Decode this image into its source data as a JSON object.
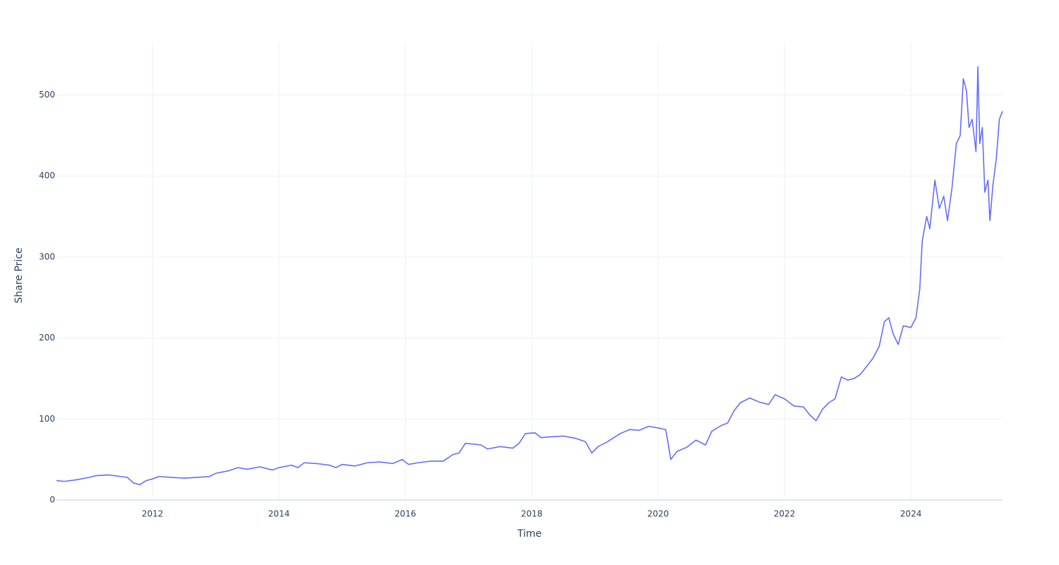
{
  "chart_data": {
    "type": "line",
    "x_label": "Time",
    "y_label": "Share Price",
    "color": "#636efa",
    "grid": true,
    "xlim": [
      2010.48,
      2025.45
    ],
    "ylim": [
      0,
      565
    ],
    "xticks": [
      2012,
      2014,
      2016,
      2018,
      2020,
      2022,
      2024
    ],
    "yticks": [
      0,
      100,
      200,
      300,
      400,
      500
    ],
    "x": [
      2010.48,
      2010.6,
      2010.8,
      2011.0,
      2011.1,
      2011.3,
      2011.5,
      2011.6,
      2011.7,
      2011.8,
      2011.9,
      2012.0,
      2012.1,
      2012.3,
      2012.5,
      2012.7,
      2012.9,
      2013.0,
      2013.2,
      2013.35,
      2013.5,
      2013.7,
      2013.9,
      2014.0,
      2014.2,
      2014.3,
      2014.4,
      2014.6,
      2014.8,
      2014.9,
      2015.0,
      2015.2,
      2015.4,
      2015.6,
      2015.8,
      2015.95,
      2016.05,
      2016.2,
      2016.4,
      2016.6,
      2016.75,
      2016.85,
      2016.95,
      2017.2,
      2017.3,
      2017.5,
      2017.7,
      2017.8,
      2017.9,
      2018.05,
      2018.15,
      2018.3,
      2018.5,
      2018.7,
      2018.85,
      2018.95,
      2019.05,
      2019.2,
      2019.4,
      2019.55,
      2019.7,
      2019.85,
      2020.0,
      2020.12,
      2020.15,
      2020.2,
      2020.3,
      2020.45,
      2020.6,
      2020.75,
      2020.85,
      2021.0,
      2021.1,
      2021.2,
      2021.3,
      2021.45,
      2021.6,
      2021.75,
      2021.85,
      2022.0,
      2022.15,
      2022.3,
      2022.4,
      2022.5,
      2022.6,
      2022.7,
      2022.8,
      2022.9,
      2023.0,
      2023.1,
      2023.2,
      2023.3,
      2023.4,
      2023.5,
      2023.58,
      2023.65,
      2023.72,
      2023.8,
      2023.88,
      2024.0,
      2024.08,
      2024.14,
      2024.18,
      2024.25,
      2024.3,
      2024.38,
      2024.45,
      2024.52,
      2024.58,
      2024.65,
      2024.72,
      2024.78,
      2024.83,
      2024.88,
      2024.92,
      2024.97,
      2025.03,
      2025.06,
      2025.09,
      2025.13,
      2025.17,
      2025.22,
      2025.25,
      2025.3,
      2025.35,
      2025.4,
      2025.45
    ],
    "values": [
      24,
      23,
      25,
      28,
      30,
      31,
      29,
      28,
      21,
      19,
      24,
      26,
      29,
      28,
      27,
      28,
      29,
      33,
      36,
      40,
      38,
      41,
      37,
      40,
      43,
      40,
      46,
      45,
      43,
      40,
      44,
      42,
      46,
      47,
      45,
      50,
      44,
      46,
      48,
      48,
      56,
      58,
      70,
      68,
      63,
      66,
      64,
      70,
      82,
      83,
      77,
      78,
      79,
      76,
      72,
      58,
      66,
      72,
      82,
      87,
      86,
      91,
      89,
      87,
      74,
      50,
      60,
      65,
      74,
      68,
      85,
      92,
      95,
      110,
      120,
      126,
      121,
      118,
      130,
      125,
      116,
      115,
      105,
      98,
      112,
      120,
      125,
      152,
      148,
      150,
      155,
      165,
      175,
      190,
      220,
      225,
      205,
      192,
      215,
      213,
      225,
      260,
      320,
      350,
      335,
      395,
      360,
      375,
      345,
      385,
      440,
      450,
      520,
      505,
      460,
      470,
      430,
      535,
      440,
      460,
      380,
      395,
      345,
      390,
      420,
      470,
      480
    ]
  }
}
